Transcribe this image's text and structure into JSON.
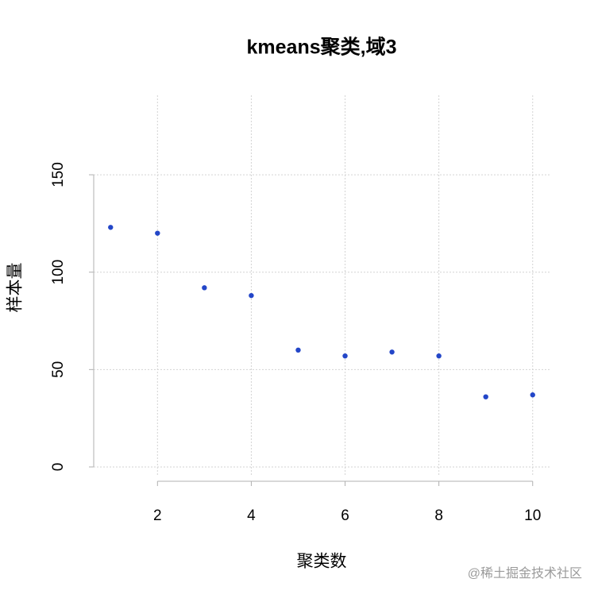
{
  "chart_data": {
    "type": "scatter",
    "title": "kmeans聚类,域3",
    "x_label": "聚类数",
    "y_label": "样本量",
    "x": [
      1,
      2,
      3,
      4,
      5,
      6,
      7,
      8,
      9,
      10
    ],
    "series": [
      {
        "color": "#2346c8",
        "values": [
          123,
          120,
          92,
          88,
          60,
          57,
          59,
          57,
          36,
          37
        ]
      }
    ],
    "xlim": [
      0.64,
      10.36
    ],
    "xticks": [
      2,
      4,
      6,
      8,
      10
    ],
    "ylim": [
      -4.9,
      190.8
    ],
    "yticks": [
      0,
      50,
      100,
      150
    ],
    "grid": true
  },
  "watermark": "@稀土掘金技术社区"
}
